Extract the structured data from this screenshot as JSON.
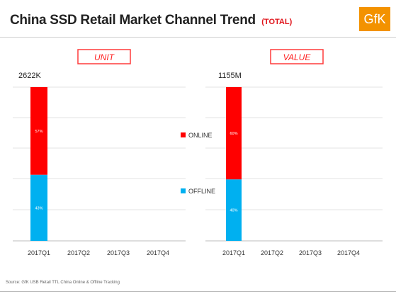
{
  "header": {
    "title": "China SSD Retail Market Channel Trend",
    "subtitle": "(TOTAL)",
    "logo_text": "GfK",
    "logo_color": "#f39200"
  },
  "legend": {
    "items": [
      {
        "label": "ONLINE",
        "color": "#ff0000"
      },
      {
        "label": "OFFLINE",
        "color": "#00b0f0"
      }
    ],
    "placement": "center between charts"
  },
  "source": "Source: GfK USB Retail TTL China Online & Offline Tracking",
  "chart_data": [
    {
      "type": "bar",
      "stacked": true,
      "title": "UNIT",
      "total_label": "2622K",
      "categories": [
        "2017Q1",
        "2017Q2",
        "2017Q3",
        "2017Q4"
      ],
      "series": [
        {
          "name": "ONLINE",
          "values": [
            57,
            null,
            null,
            null
          ],
          "labels": [
            "57%",
            "",
            "",
            ""
          ],
          "color": "#ff0000"
        },
        {
          "name": "OFFLINE",
          "values": [
            43,
            null,
            null,
            null
          ],
          "labels": [
            "43%",
            "",
            "",
            ""
          ],
          "color": "#00b0f0"
        }
      ],
      "ylim": [
        0,
        100
      ],
      "grid": true
    },
    {
      "type": "bar",
      "stacked": true,
      "title": "VALUE",
      "total_label": "1155M",
      "categories": [
        "2017Q1",
        "2017Q2",
        "2017Q3",
        "2017Q4"
      ],
      "series": [
        {
          "name": "ONLINE",
          "values": [
            60,
            null,
            null,
            null
          ],
          "labels": [
            "60%",
            "",
            "",
            ""
          ],
          "color": "#ff0000"
        },
        {
          "name": "OFFLINE",
          "values": [
            40,
            null,
            null,
            null
          ],
          "labels": [
            "40%",
            "",
            "",
            ""
          ],
          "color": "#00b0f0"
        }
      ],
      "ylim": [
        0,
        100
      ],
      "grid": true
    }
  ]
}
